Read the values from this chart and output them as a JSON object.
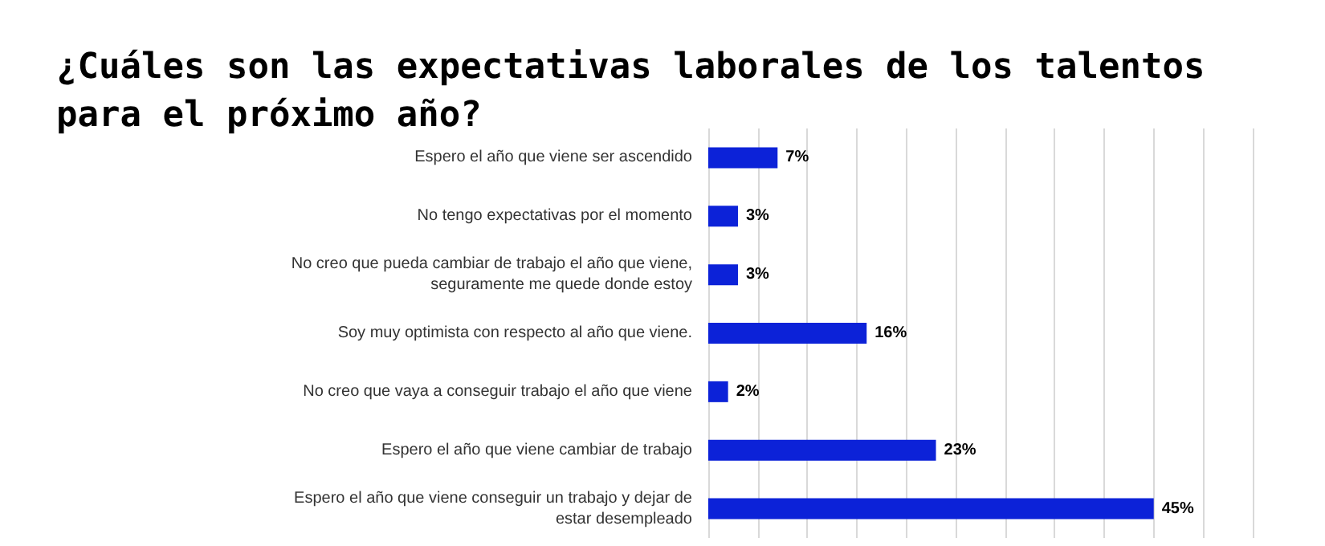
{
  "chart_data": {
    "type": "bar",
    "orientation": "horizontal",
    "title": "¿Cuáles son las expectativas laborales de los talentos para el próximo año?",
    "categories": [
      "Espero el año que viene ser ascendido",
      "No tengo expectativas por el momento",
      "No creo que pueda cambiar de trabajo el año que viene,\nseguramente me quede donde estoy",
      "Soy muy optimista con respecto al año que viene.",
      "No creo que vaya a conseguir trabajo el año que viene",
      "Espero el año que viene cambiar de trabajo",
      "Espero el año que viene conseguir un trabajo y dejar de\nestar desempleado"
    ],
    "values": [
      7,
      3,
      3,
      16,
      2,
      23,
      45
    ],
    "value_labels": [
      "7%",
      "3%",
      "3%",
      "16%",
      "2%",
      "23%",
      "45%"
    ],
    "color": "#0c22d8",
    "xlim": [
      0,
      55
    ],
    "xticks": [
      {
        "value": 0,
        "label": null
      },
      {
        "value": 5,
        "label": null
      },
      {
        "value": 10,
        "label": null
      },
      {
        "value": 15,
        "label": null
      },
      {
        "value": 20,
        "label": null
      },
      {
        "value": 25,
        "label": null
      },
      {
        "value": 30,
        "label": null
      },
      {
        "value": 35,
        "label": null
      },
      {
        "value": 40,
        "label": null
      },
      {
        "value": 45,
        "label": null
      },
      {
        "value": 50,
        "label": null
      },
      {
        "value": 55,
        "label": null
      }
    ],
    "grid": "x"
  }
}
